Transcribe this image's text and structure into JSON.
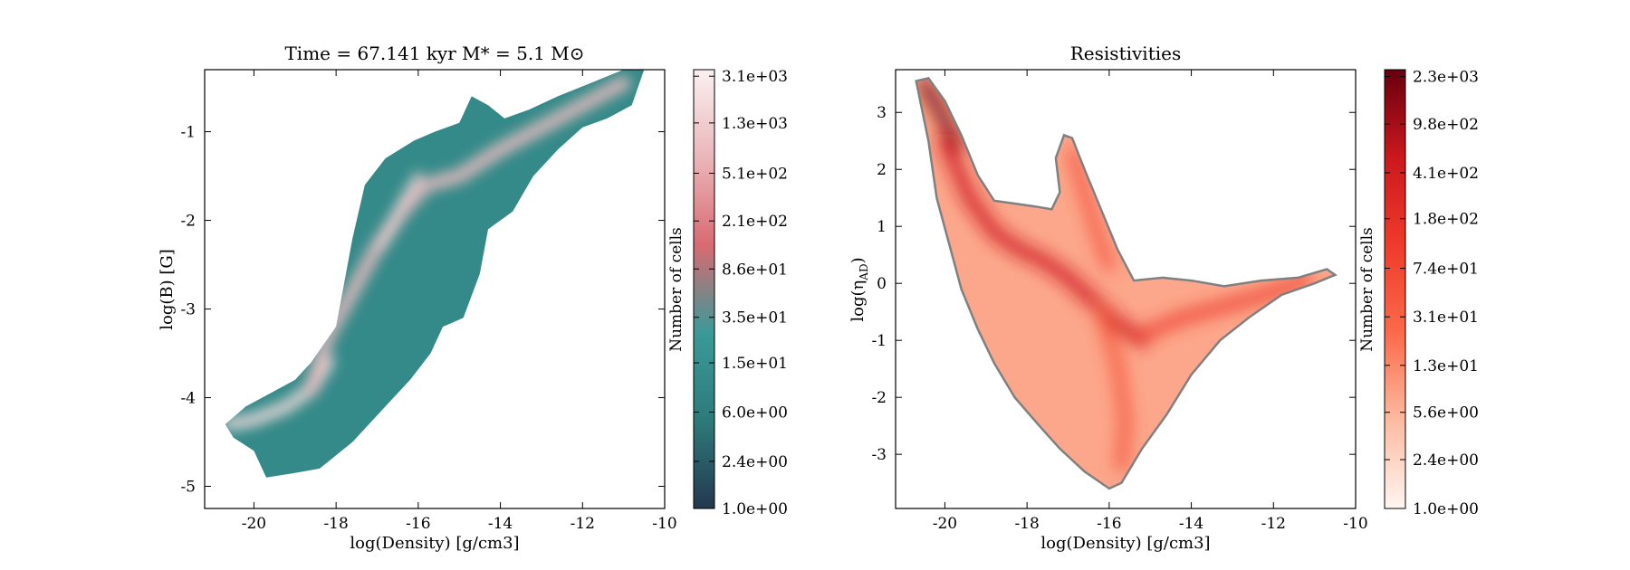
{
  "chart_data": [
    {
      "type": "heatmap",
      "title": "Time = 67.141 kyr    M$_*$ = 5.1 M$_\\odot$",
      "title_display": "Time = 67.141 kyr    M* = 5.1 M⊙",
      "xlabel": "log(Density) [g/cm3]",
      "ylabel": "log(B) [G]",
      "xlim": [
        -21.2,
        -10
      ],
      "ylim": [
        -5.25,
        -0.3
      ],
      "xticks": [
        -20,
        -18,
        -16,
        -14,
        -12,
        -10
      ],
      "yticks": [
        -5,
        -4,
        -3,
        -2,
        -1
      ],
      "colorbar": {
        "label": "Number of cells",
        "scale": "log",
        "range": [
          1,
          3500
        ],
        "ticks": [
          "1.0e+00",
          "2.4e+00",
          "6.0e+00",
          "1.5e+01",
          "3.5e+01",
          "8.6e+01",
          "2.1e+02",
          "5.1e+02",
          "1.3e+03",
          "3.1e+03"
        ],
        "colors": [
          "#24384f",
          "#2e7a7a",
          "#3a9a98",
          "#d96a72",
          "#eab6b9",
          "#fbf0f1"
        ]
      },
      "outline": [
        [
          -20.7,
          -4.3
        ],
        [
          -20.2,
          -4.1
        ],
        [
          -19.6,
          -3.95
        ],
        [
          -19.0,
          -3.8
        ],
        [
          -18.6,
          -3.6
        ],
        [
          -18.0,
          -3.2
        ],
        [
          -17.8,
          -2.7
        ],
        [
          -17.6,
          -2.2
        ],
        [
          -17.3,
          -1.6
        ],
        [
          -16.8,
          -1.3
        ],
        [
          -16.1,
          -1.1
        ],
        [
          -15.6,
          -1.0
        ],
        [
          -15.0,
          -0.9
        ],
        [
          -14.7,
          -0.6
        ],
        [
          -14.3,
          -0.7
        ],
        [
          -13.9,
          -0.85
        ],
        [
          -13.3,
          -0.75
        ],
        [
          -12.6,
          -0.6
        ],
        [
          -11.8,
          -0.45
        ],
        [
          -11.0,
          -0.3
        ],
        [
          -10.5,
          -0.3
        ],
        [
          -10.8,
          -0.7
        ],
        [
          -11.4,
          -0.85
        ],
        [
          -12.0,
          -0.95
        ],
        [
          -12.6,
          -1.2
        ],
        [
          -13.2,
          -1.5
        ],
        [
          -13.7,
          -1.9
        ],
        [
          -14.3,
          -2.1
        ],
        [
          -14.5,
          -2.6
        ],
        [
          -14.9,
          -3.1
        ],
        [
          -15.4,
          -3.2
        ],
        [
          -15.7,
          -3.5
        ],
        [
          -16.2,
          -3.8
        ],
        [
          -16.6,
          -4.0
        ],
        [
          -17.2,
          -4.3
        ],
        [
          -17.6,
          -4.5
        ],
        [
          -18.4,
          -4.8
        ],
        [
          -19.0,
          -4.85
        ],
        [
          -19.7,
          -4.9
        ],
        [
          -20.0,
          -4.6
        ],
        [
          -20.5,
          -4.45
        ]
      ],
      "ridges": [
        {
          "level": 0.93,
          "points": [
            [
              -20.6,
              -4.3
            ],
            [
              -20.0,
              -4.25
            ],
            [
              -19.2,
              -4.1
            ],
            [
              -18.6,
              -3.9
            ],
            [
              -18.2,
              -3.6
            ]
          ],
          "width": 0.32
        },
        {
          "level": 0.82,
          "points": [
            [
              -18.6,
              -3.9
            ],
            [
              -18.2,
              -3.3
            ],
            [
              -17.6,
              -2.8
            ],
            [
              -17.0,
              -2.3
            ],
            [
              -16.4,
              -1.9
            ],
            [
              -15.8,
              -1.6
            ],
            [
              -15.0,
              -1.5
            ],
            [
              -14.0,
              -1.2
            ],
            [
              -13.0,
              -0.95
            ],
            [
              -11.8,
              -0.65
            ],
            [
              -11.0,
              -0.45
            ]
          ],
          "width": 0.35
        },
        {
          "level": 0.9,
          "points": [
            [
              -16.9,
              -2.3
            ],
            [
              -16.4,
              -1.8
            ],
            [
              -16.0,
              -1.5
            ]
          ],
          "width": 0.2
        }
      ]
    },
    {
      "type": "heatmap",
      "title": "Resistivities",
      "xlabel": "log(Density) [g/cm3]",
      "ylabel": "log(η$_{\\rm AD}$)",
      "ylabel_main": "log(η",
      "ylabel_sub": "AD",
      "ylabel_end": ")",
      "xlim": [
        -21.2,
        -10
      ],
      "ylim": [
        -3.95,
        3.75
      ],
      "xticks": [
        -20,
        -18,
        -16,
        -14,
        -12,
        -10
      ],
      "yticks": [
        -3,
        -2,
        -1,
        0,
        1,
        2,
        3
      ],
      "colorbar": {
        "label": "Number of cells",
        "scale": "log",
        "range": [
          1,
          2600
        ],
        "ticks": [
          "1.0e+00",
          "2.4e+00",
          "5.6e+00",
          "1.3e+01",
          "3.1e+01",
          "7.4e+01",
          "1.8e+02",
          "4.1e+02",
          "9.8e+02",
          "2.3e+03"
        ],
        "colors": [
          "#fff5f0",
          "#fcbba1",
          "#fb6a4a",
          "#ef3b2c",
          "#cb181d",
          "#67000d"
        ]
      },
      "outline": [
        [
          -20.7,
          3.55
        ],
        [
          -20.4,
          3.6
        ],
        [
          -20.0,
          3.2
        ],
        [
          -19.6,
          2.6
        ],
        [
          -19.2,
          1.9
        ],
        [
          -18.8,
          1.45
        ],
        [
          -18.3,
          1.4
        ],
        [
          -17.8,
          1.35
        ],
        [
          -17.4,
          1.3
        ],
        [
          -17.2,
          1.6
        ],
        [
          -17.3,
          2.2
        ],
        [
          -17.1,
          2.6
        ],
        [
          -16.9,
          2.55
        ],
        [
          -16.6,
          2.0
        ],
        [
          -16.2,
          1.3
        ],
        [
          -15.8,
          0.6
        ],
        [
          -15.4,
          0.05
        ],
        [
          -14.7,
          0.1
        ],
        [
          -14.0,
          0.05
        ],
        [
          -13.2,
          -0.05
        ],
        [
          -12.3,
          0.05
        ],
        [
          -11.4,
          0.1
        ],
        [
          -10.7,
          0.25
        ],
        [
          -10.5,
          0.15
        ],
        [
          -11.0,
          0.0
        ],
        [
          -11.8,
          -0.2
        ],
        [
          -12.6,
          -0.6
        ],
        [
          -13.3,
          -1.0
        ],
        [
          -14.0,
          -1.6
        ],
        [
          -14.6,
          -2.3
        ],
        [
          -15.2,
          -2.9
        ],
        [
          -15.7,
          -3.5
        ],
        [
          -16.0,
          -3.6
        ],
        [
          -16.6,
          -3.3
        ],
        [
          -17.2,
          -2.9
        ],
        [
          -17.7,
          -2.5
        ],
        [
          -18.3,
          -2.0
        ],
        [
          -18.8,
          -1.4
        ],
        [
          -19.2,
          -0.8
        ],
        [
          -19.6,
          -0.1
        ],
        [
          -19.9,
          0.7
        ],
        [
          -20.2,
          1.5
        ],
        [
          -20.4,
          2.5
        ],
        [
          -20.6,
          3.2
        ]
      ],
      "ridges": [
        {
          "level": 1.0,
          "points": [
            [
              -20.5,
              3.5
            ],
            [
              -20.1,
              3.0
            ],
            [
              -19.7,
              2.4
            ]
          ],
          "width": 0.3
        },
        {
          "level": 0.78,
          "points": [
            [
              -20.0,
              2.5
            ],
            [
              -19.4,
              1.5
            ],
            [
              -18.8,
              0.9
            ],
            [
              -18.2,
              0.6
            ],
            [
              -17.6,
              0.4
            ],
            [
              -17.0,
              0.1
            ],
            [
              -16.4,
              -0.3
            ],
            [
              -15.8,
              -0.7
            ],
            [
              -15.2,
              -1.0
            ]
          ],
          "width": 0.35
        },
        {
          "level": 0.6,
          "points": [
            [
              -15.2,
              -0.9
            ],
            [
              -14.2,
              -0.6
            ],
            [
              -13.2,
              -0.4
            ],
            [
              -12.2,
              -0.2
            ],
            [
              -11.2,
              0.05
            ]
          ],
          "width": 0.3
        },
        {
          "level": 0.55,
          "points": [
            [
              -16.9,
              2.3
            ],
            [
              -16.6,
              1.6
            ],
            [
              -16.3,
              0.9
            ],
            [
              -16.0,
              0.3
            ]
          ],
          "width": 0.25
        },
        {
          "level": 0.5,
          "points": [
            [
              -16.2,
              -0.5
            ],
            [
              -15.8,
              -1.4
            ],
            [
              -15.6,
              -2.4
            ],
            [
              -15.7,
              -3.2
            ]
          ],
          "width": 0.3
        }
      ]
    }
  ]
}
